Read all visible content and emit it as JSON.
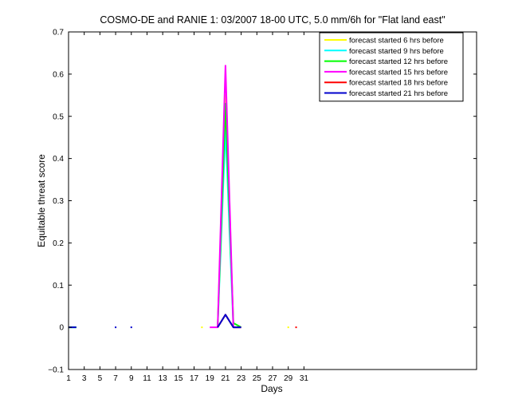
{
  "chart_data": {
    "type": "line",
    "title": "COSMO-DE and RANIE 1: 03/2007 18-00 UTC, 5.0 mm/6h for \"Flat land east\"",
    "xlabel": "Days",
    "ylabel": "Equitable threat score",
    "xlim": [
      1,
      53
    ],
    "ylim": [
      -0.1,
      0.7
    ],
    "xticks": [
      1,
      3,
      5,
      7,
      9,
      11,
      13,
      15,
      17,
      19,
      21,
      23,
      25,
      27,
      29,
      31
    ],
    "xtick_labels": [
      "1",
      "3",
      "5",
      "7",
      "9",
      "11",
      "13",
      "15",
      "17",
      "19",
      "21",
      "23",
      "25",
      "27",
      "29",
      "31"
    ],
    "yticks": [
      -0.1,
      0,
      0.1,
      0.2,
      0.3,
      0.4,
      0.5,
      0.6,
      0.7
    ],
    "ytick_labels": [
      "−0.1",
      "0",
      "0.1",
      "0.2",
      "0.3",
      "0.4",
      "0.5",
      "0.6",
      "0.7"
    ],
    "grid": false,
    "legend_position": "top-right",
    "series": [
      {
        "name": "forecast started 6 hrs before",
        "color": "#ffff00",
        "segments": [
          [
            [
              20,
              0
            ],
            [
              21,
              0.55
            ],
            [
              22,
              0
            ]
          ],
          [
            [
              18,
              0
            ]
          ],
          [
            [
              29,
              0
            ]
          ]
        ]
      },
      {
        "name": "forecast started 9 hrs before",
        "color": "#00ffff",
        "segments": [
          [
            [
              1,
              0
            ],
            [
              2,
              0
            ]
          ],
          [
            [
              20,
              0
            ],
            [
              21,
              0.47
            ],
            [
              22,
              0
            ],
            [
              23,
              0
            ]
          ]
        ]
      },
      {
        "name": "forecast started 12 hrs before",
        "color": "#00ff00",
        "segments": [
          [
            [
              1,
              0
            ],
            [
              2,
              0
            ]
          ],
          [
            [
              20,
              0
            ],
            [
              21,
              0.53
            ],
            [
              22,
              0.01
            ],
            [
              23,
              0
            ]
          ]
        ]
      },
      {
        "name": "forecast started 15 hrs before",
        "color": "#ff00ff",
        "segments": [
          [
            [
              19,
              0
            ],
            [
              20,
              0
            ],
            [
              21,
              0.62
            ],
            [
              22,
              0
            ],
            [
              23,
              0
            ]
          ]
        ]
      },
      {
        "name": "forecast started 18 hrs before",
        "color": "#ff0000",
        "segments": [
          [
            [
              20,
              0
            ],
            [
              21,
              0.03
            ],
            [
              22,
              0
            ],
            [
              23,
              0
            ]
          ],
          [
            [
              30,
              0
            ]
          ]
        ]
      },
      {
        "name": "forecast started 21 hrs before",
        "color": "#0000cc",
        "segments": [
          [
            [
              1,
              0
            ],
            [
              2,
              0
            ]
          ],
          [
            [
              7,
              0
            ]
          ],
          [
            [
              9,
              0
            ]
          ],
          [
            [
              20,
              0
            ],
            [
              21,
              0.03
            ],
            [
              22,
              0
            ],
            [
              23,
              0
            ]
          ]
        ]
      }
    ]
  }
}
